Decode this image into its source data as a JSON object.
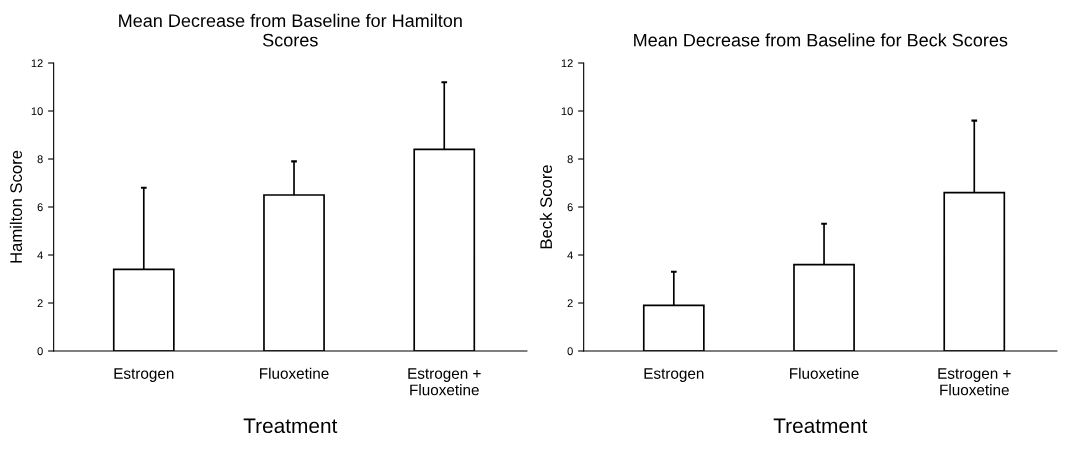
{
  "chart_data": [
    {
      "type": "bar",
      "title": "Mean Decrease from Baseline for Hamilton\nScores",
      "xlabel": "Treatment",
      "ylabel": "Hamilton Score",
      "categories": [
        "Estrogen",
        "Fluoxetine",
        "Estrogen +\nFluoxetine"
      ],
      "values": [
        3.4,
        6.5,
        8.4
      ],
      "color": "#ffffff",
      "errors": [
        [
          3.4,
          6.8
        ],
        [
          6.5,
          7.9
        ],
        [
          8.4,
          11.2
        ]
      ],
      "ylim": [
        0,
        12
      ],
      "yticks": [
        0,
        2,
        4,
        6,
        8,
        10,
        12
      ],
      "grid": false
    },
    {
      "type": "bar",
      "title": "Mean Decrease from Baseline for Beck Scores",
      "xlabel": "Treatment",
      "ylabel": "Beck Score",
      "categories": [
        "Estrogen",
        "Fluoxetine",
        "Estrogen +\nFluoxetine"
      ],
      "values": [
        1.9,
        3.6,
        6.6
      ],
      "color": "#ffffff",
      "errors": [
        [
          1.9,
          3.3
        ],
        [
          3.6,
          5.3
        ],
        [
          6.6,
          9.6
        ]
      ],
      "ylim": [
        0,
        12
      ],
      "yticks": [
        0,
        2,
        4,
        6,
        8,
        10,
        12
      ],
      "grid": false
    }
  ]
}
